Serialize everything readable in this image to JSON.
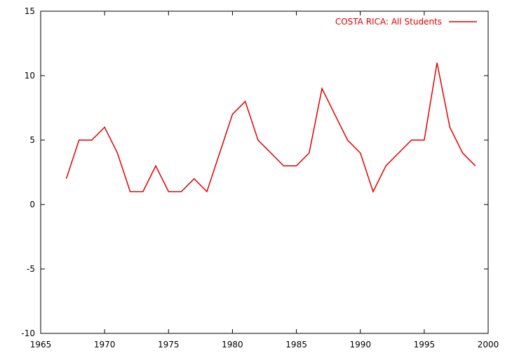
{
  "chart_data": {
    "type": "line",
    "xlim": [
      1965,
      2000
    ],
    "ylim": [
      -10,
      15
    ],
    "x_ticks": [
      1965,
      1970,
      1975,
      1980,
      1985,
      1990,
      1995,
      2000
    ],
    "y_ticks": [
      -10,
      -5,
      0,
      5,
      10,
      15
    ],
    "grid": false,
    "legend_position": "top-right",
    "series": [
      {
        "name": "COSTA RICA: All Students",
        "color": "#e00000",
        "x": [
          1967,
          1968,
          1969,
          1970,
          1971,
          1972,
          1973,
          1974,
          1975,
          1976,
          1977,
          1978,
          1979,
          1980,
          1981,
          1982,
          1983,
          1984,
          1985,
          1986,
          1987,
          1988,
          1989,
          1990,
          1991,
          1992,
          1993,
          1994,
          1995,
          1996,
          1997,
          1998,
          1999
        ],
        "y": [
          2,
          5,
          5,
          6,
          4,
          1,
          1,
          3,
          1,
          1,
          2,
          1,
          4,
          7,
          8,
          5,
          4,
          3,
          3,
          4,
          9,
          7,
          5,
          4,
          1,
          3,
          4,
          5,
          5,
          11,
          6,
          4,
          3
        ]
      }
    ]
  }
}
